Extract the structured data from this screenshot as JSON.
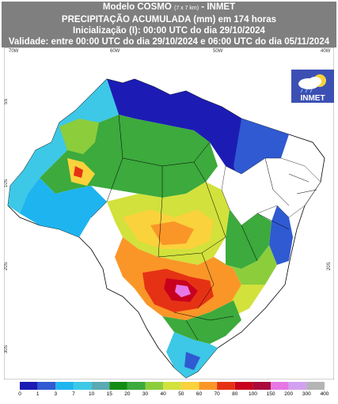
{
  "header": {
    "line1_model": "Modelo COSMO",
    "line1_res": "(7 x 7 km)",
    "line1_tail": " - INMET",
    "line2": "PRECIPITAÇÃO ACUMULADA (mm) em 174 horas",
    "line3": "Inicialização (I): 00:00 UTC do dia 29/10/2024",
    "line4": "Validade: entre 00:00 UTC do dia 29/10/2024 e 06:00 UTC do dia 05/11/2024"
  },
  "axes": {
    "lon_labels": [
      "70W",
      "60W",
      "50W",
      "40W"
    ],
    "lat_labels": [
      "5S",
      "10S",
      "20S",
      "30S",
      "20S"
    ]
  },
  "logo": {
    "text": "INMET",
    "icon": "cloud-sun-rain-icon"
  },
  "legend": {
    "labels": [
      "0",
      "1",
      "3",
      "7",
      "10",
      "15",
      "20",
      "30",
      "40",
      "50",
      "60",
      "70",
      "80",
      "100",
      "150",
      "200",
      "300",
      "400"
    ],
    "colors": [
      "#1c1cb4",
      "#2f5ad2",
      "#1eb4f0",
      "#3cc8e6",
      "#5aaab4",
      "#148c14",
      "#3caa3c",
      "#8ccd3c",
      "#d2e13c",
      "#fad23c",
      "#fa9628",
      "#e63214",
      "#c8001e",
      "#aa0a3c",
      "#e678e6",
      "#d2a0f0",
      "#b4b4b4"
    ]
  }
}
